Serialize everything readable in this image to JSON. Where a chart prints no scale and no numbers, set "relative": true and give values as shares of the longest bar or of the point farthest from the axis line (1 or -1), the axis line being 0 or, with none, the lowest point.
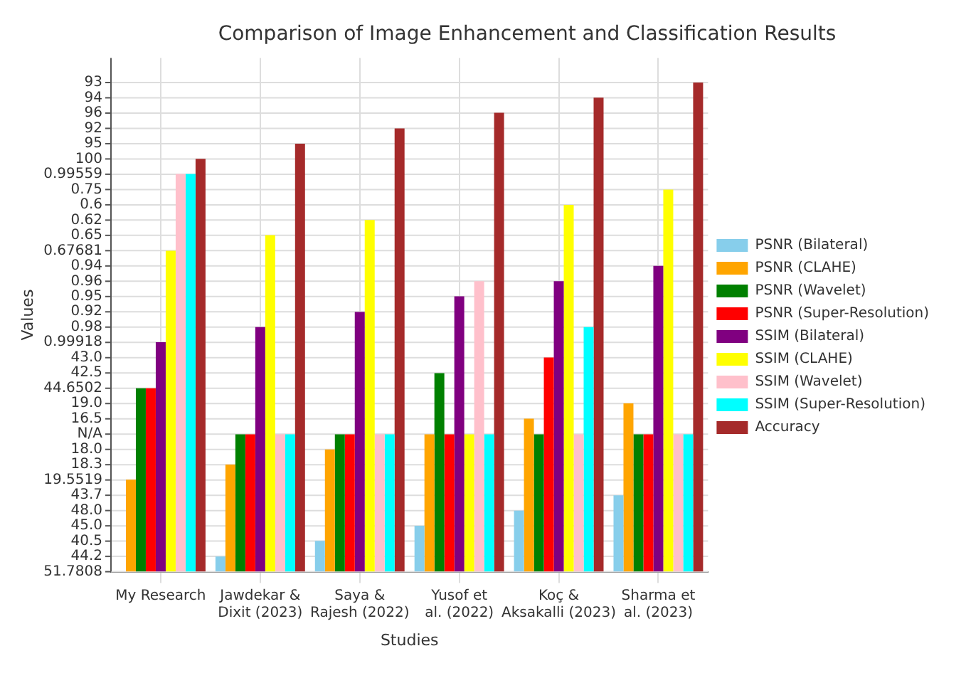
{
  "chart_data": {
    "type": "bar",
    "title": "Comparison of Image Enhancement and Classification Results",
    "xlabel": "Studies",
    "ylabel": "Values",
    "relative": true,
    "categories": [
      "My Research",
      "Jawdekar & Dixit (2023)",
      "Saya & Rajesh (2022)",
      "Yusof et al. (2022)",
      "Koç & Aksakalli (2023)",
      "Sharma et al. (2023)"
    ],
    "series": [
      {
        "name": "PSNR (Bilateral)",
        "color": "#87ceeb",
        "values": [
          0,
          0.031,
          0.063,
          0.094,
          0.125,
          0.156
        ]
      },
      {
        "name": "PSNR (CLAHE)",
        "color": "#ffa500",
        "values": [
          0.188,
          0.219,
          0.25,
          0.281,
          0.313,
          0.344
        ]
      },
      {
        "name": "PSNR (Wavelet)",
        "color": "#008000",
        "values": [
          0.375,
          0.281,
          0.281,
          0.406,
          0.281,
          0.281
        ]
      },
      {
        "name": "PSNR (Super-Resolution)",
        "color": "#ff0000",
        "values": [
          0.375,
          0.281,
          0.281,
          0.281,
          0.438,
          0.281
        ]
      },
      {
        "name": "SSIM (Bilateral)",
        "color": "#800080",
        "values": [
          0.469,
          0.5,
          0.531,
          0.563,
          0.594,
          0.625
        ]
      },
      {
        "name": "SSIM (CLAHE)",
        "color": "#ffff00",
        "values": [
          0.656,
          0.688,
          0.719,
          0.281,
          0.75,
          0.781
        ]
      },
      {
        "name": "SSIM (Wavelet)",
        "color": "#ffc0cb",
        "values": [
          0.813,
          0.281,
          0.281,
          0.594,
          0.281,
          0.281
        ]
      },
      {
        "name": "SSIM (Super-Resolution)",
        "color": "#00ffff",
        "values": [
          0.813,
          0.281,
          0.281,
          0.281,
          0.5,
          0.281
        ]
      },
      {
        "name": "Accuracy",
        "color": "#a52a2a",
        "values": [
          0.844,
          0.875,
          0.906,
          0.938,
          0.969,
          1
        ]
      }
    ],
    "annotations": [
      "51.7808",
      "44.2",
      "40.5",
      "45.0",
      "48.0",
      "43.7",
      "19.5519",
      "18.3",
      "18.0",
      "N/A",
      "16.5",
      "19.0",
      "44.6502",
      "42.5",
      "43.0",
      "0.99918",
      "0.98",
      "0.92",
      "0.95",
      "0.96",
      "0.94",
      "0.67681",
      "0.65",
      "0.62",
      "0.6",
      "0.75",
      "0.99559",
      "100",
      "95",
      "92",
      "96",
      "94",
      "93"
    ],
    "grid": true,
    "legend": "right"
  }
}
